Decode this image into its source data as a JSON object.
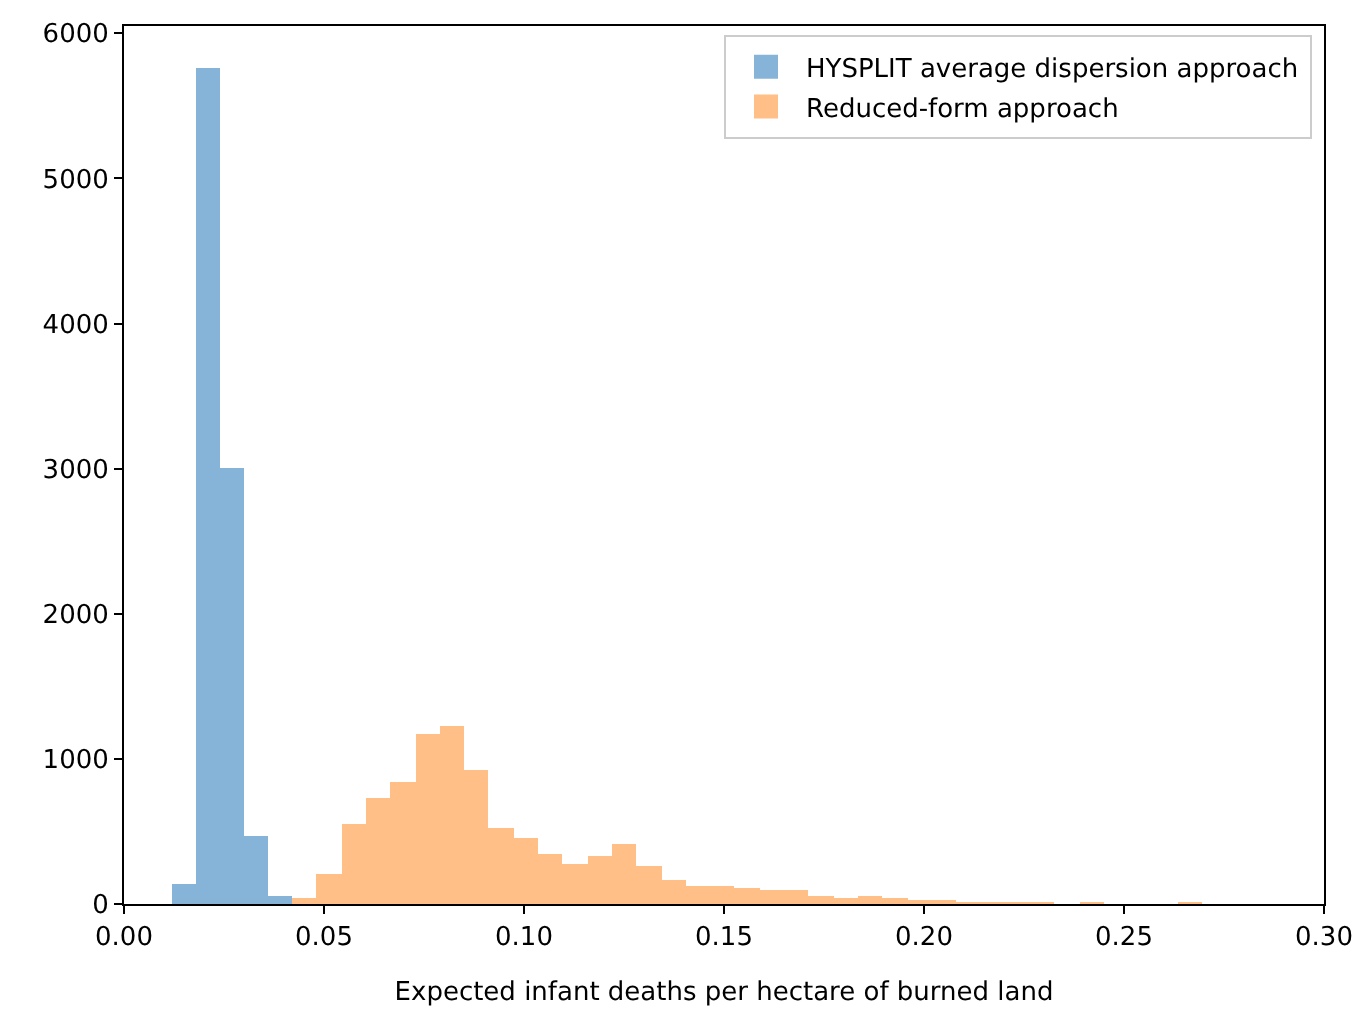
{
  "chart_data": {
    "type": "histogram",
    "xlabel": "Expected infant deaths per hectare of burned land",
    "xlim": [
      0,
      0.3
    ],
    "xticks": [
      {
        "value": 0,
        "label": "0.00"
      },
      {
        "value": 0.05,
        "label": "0.05"
      },
      {
        "value": 0.1,
        "label": "0.10"
      },
      {
        "value": 0.15,
        "label": "0.15"
      },
      {
        "value": 0.2,
        "label": "0.20"
      },
      {
        "value": 0.25,
        "label": "0.25"
      },
      {
        "value": 0.3,
        "label": "0.30"
      }
    ],
    "ylim": [
      0,
      6050
    ],
    "yticks": [
      0,
      1000,
      2000,
      3000,
      4000,
      5000,
      6000
    ],
    "grid": false,
    "legend": "top right",
    "bins": [
      0.012,
      0.018,
      0.024,
      0.03,
      0.036,
      0.042,
      0.0482,
      0.0543,
      0.0605,
      0.0666,
      0.0728,
      0.0789,
      0.0851,
      0.0912,
      0.0974,
      0.1035,
      0.1097,
      0.1158,
      0.122,
      0.1281,
      0.1343,
      0.1404,
      0.1466,
      0.1527,
      0.1589,
      0.165,
      0.1712,
      0.1773,
      0.1835,
      0.1896,
      0.1958,
      0.2019,
      0.2081,
      0.2142,
      0.2204,
      0.2265,
      0.2327,
      0.2388,
      0.245,
      0.2634,
      0.2696
    ],
    "series": [
      {
        "name": "HYSPLIT average dispersion approach",
        "color": "#86b4d8",
        "values": [
          140,
          5760,
          3000,
          470,
          60,
          null,
          null,
          null,
          null,
          null,
          null,
          null,
          null,
          null,
          null,
          null,
          null,
          null,
          null,
          null,
          null,
          null,
          null,
          null,
          null,
          null,
          null,
          null,
          null,
          null,
          null,
          null,
          null,
          null,
          null,
          null,
          null,
          null,
          null,
          null
        ]
      },
      {
        "name": "Reduced-form approach",
        "color": "#ffbf86",
        "values": [
          null,
          null,
          null,
          null,
          null,
          40,
          200,
          550,
          730,
          840,
          1170,
          1230,
          920,
          530,
          450,
          340,
          280,
          330,
          420,
          260,
          160,
          130,
          130,
          110,
          90,
          90,
          50,
          40,
          60,
          40,
          20,
          20,
          10,
          10,
          10,
          10,
          0,
          10,
          0,
          10
        ]
      }
    ]
  }
}
